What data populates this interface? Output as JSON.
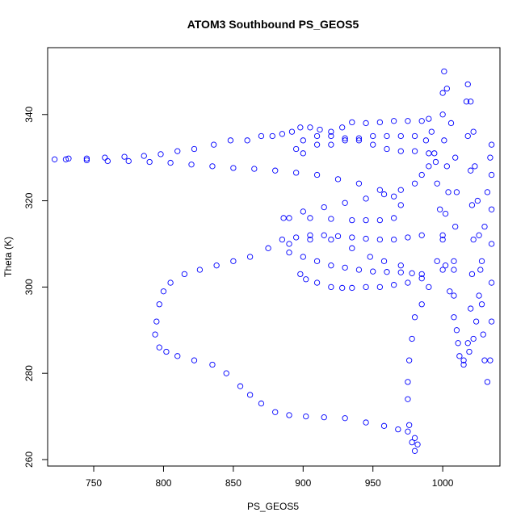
{
  "chart_data": {
    "type": "scatter",
    "title": "ATOM3 Southbound PS_GEOS5",
    "xlabel": "PS_GEOS5",
    "ylabel": "Theta (K)",
    "xlim": [
      717,
      1041
    ],
    "ylim": [
      258.5,
      355.5
    ],
    "xticks": [
      750,
      800,
      850,
      900,
      950,
      1000
    ],
    "yticks": [
      260,
      280,
      300,
      320,
      340
    ],
    "grid": false,
    "legend": "none",
    "marker": "open-circle",
    "color": "#0000ff",
    "series": [
      {
        "points": [
          [
            1008,
            304
          ],
          [
            1000,
            304
          ],
          [
            985,
            303
          ],
          [
            970,
            305
          ],
          [
            958,
            306
          ],
          [
            948,
            307
          ],
          [
            935,
            309
          ],
          [
            920,
            311
          ],
          [
            905,
            311
          ],
          [
            890,
            310
          ],
          [
            875,
            309
          ],
          [
            862,
            307
          ],
          [
            850,
            306
          ],
          [
            838,
            305
          ],
          [
            826,
            304
          ],
          [
            815,
            303
          ],
          [
            805,
            301
          ],
          [
            800,
            299
          ],
          [
            797,
            296
          ],
          [
            795,
            292
          ],
          [
            794,
            289
          ],
          [
            797,
            286
          ],
          [
            802,
            285
          ],
          [
            810,
            284
          ],
          [
            822,
            283
          ],
          [
            835,
            282
          ],
          [
            845,
            280
          ],
          [
            855,
            277
          ],
          [
            862,
            275
          ],
          [
            870,
            273
          ],
          [
            880,
            271
          ],
          [
            890,
            270.3
          ],
          [
            902,
            270
          ],
          [
            915,
            269.8
          ],
          [
            930,
            269.6
          ],
          [
            945,
            268.6
          ],
          [
            958,
            267.8
          ],
          [
            968,
            267
          ],
          [
            975,
            266.5
          ],
          [
            980,
            265
          ],
          [
            982,
            263.5
          ],
          [
            980,
            262
          ],
          [
            978,
            264
          ],
          [
            976,
            268
          ],
          [
            975,
            274
          ],
          [
            975,
            278
          ],
          [
            976,
            283
          ],
          [
            978,
            288
          ],
          [
            980,
            293
          ],
          [
            985,
            296
          ],
          [
            990,
            300
          ],
          [
            996,
            306
          ],
          [
            1000,
            312
          ],
          [
            1002,
            317
          ],
          [
            1004,
            322
          ],
          [
            1003,
            328
          ],
          [
            1001,
            334
          ],
          [
            1000,
            340
          ],
          [
            1000,
            345
          ],
          [
            1001,
            350
          ],
          [
            1003,
            346
          ],
          [
            1006,
            338
          ],
          [
            1009,
            330
          ],
          [
            1010,
            322
          ],
          [
            1009,
            314
          ],
          [
            1008,
            306
          ],
          [
            1008,
            298
          ],
          [
            1010,
            290
          ],
          [
            1012,
            284
          ],
          [
            1015,
            282
          ],
          [
            1018,
            287
          ],
          [
            1020,
            295
          ],
          [
            1021,
            303
          ],
          [
            1022,
            311
          ],
          [
            1021,
            319
          ],
          [
            1020,
            327
          ],
          [
            1018,
            335
          ],
          [
            1017,
            343
          ],
          [
            1018,
            347
          ],
          [
            1020,
            343
          ],
          [
            1022,
            336
          ],
          [
            1023,
            328
          ],
          [
            1025,
            320
          ],
          [
            1026,
            312
          ],
          [
            1027,
            304
          ],
          [
            1028,
            296
          ],
          [
            1029,
            289
          ],
          [
            1030,
            283
          ],
          [
            1032,
            278
          ],
          [
            1034,
            283
          ],
          [
            1035,
            292
          ],
          [
            1035,
            301
          ],
          [
            1035,
            310
          ],
          [
            1035,
            318
          ],
          [
            1035,
            326
          ],
          [
            1035,
            333
          ],
          [
            1034,
            330
          ],
          [
            1032,
            322
          ],
          [
            1030,
            314
          ],
          [
            1028,
            306
          ],
          [
            1026,
            298
          ],
          [
            1024,
            292
          ],
          [
            1022,
            288
          ],
          [
            1019,
            285
          ],
          [
            1015,
            283
          ],
          [
            1011,
            287
          ],
          [
            1008,
            293
          ],
          [
            1005,
            299
          ],
          [
            1002,
            305
          ],
          [
            1000,
            311
          ],
          [
            998,
            318
          ],
          [
            996,
            324
          ],
          [
            994,
            331
          ],
          [
            992,
            336
          ],
          [
            990,
            339
          ],
          [
            985,
            338.5
          ],
          [
            975,
            338.5
          ],
          [
            965,
            338.5
          ],
          [
            955,
            338.2
          ],
          [
            945,
            338
          ],
          [
            935,
            338.2
          ],
          [
            928,
            337
          ],
          [
            920,
            336
          ],
          [
            912,
            336.5
          ],
          [
            905,
            337
          ],
          [
            898,
            337
          ],
          [
            892,
            336
          ],
          [
            885,
            335.5
          ],
          [
            878,
            335
          ],
          [
            870,
            335
          ],
          [
            860,
            334
          ],
          [
            848,
            334
          ],
          [
            836,
            333
          ],
          [
            822,
            332
          ],
          [
            810,
            331.5
          ],
          [
            798,
            330.8
          ],
          [
            786,
            330.4
          ],
          [
            772,
            330.2
          ],
          [
            758,
            330
          ],
          [
            745,
            329.8
          ],
          [
            732,
            329.8
          ],
          [
            722,
            329.6
          ],
          [
            730,
            329.6
          ],
          [
            745,
            329.4
          ],
          [
            760,
            329.2
          ],
          [
            775,
            329.2
          ],
          [
            790,
            329
          ],
          [
            805,
            328.8
          ],
          [
            820,
            328.4
          ],
          [
            835,
            328
          ],
          [
            850,
            327.6
          ],
          [
            865,
            327.4
          ],
          [
            880,
            327
          ],
          [
            895,
            326.5
          ],
          [
            910,
            326
          ],
          [
            925,
            325
          ],
          [
            940,
            324
          ],
          [
            955,
            322.5
          ],
          [
            965,
            321
          ],
          [
            970,
            319
          ],
          [
            965,
            316
          ],
          [
            955,
            315.5
          ],
          [
            945,
            315.5
          ],
          [
            935,
            315.5
          ],
          [
            920,
            315.8
          ],
          [
            905,
            316
          ],
          [
            890,
            316
          ],
          [
            886,
            316
          ],
          [
            900,
            317.5
          ],
          [
            915,
            318.5
          ],
          [
            930,
            319.5
          ],
          [
            945,
            320.5
          ],
          [
            958,
            321.5
          ],
          [
            970,
            322.5
          ],
          [
            980,
            324
          ],
          [
            985,
            326
          ],
          [
            990,
            328
          ],
          [
            995,
            329
          ],
          [
            990,
            331
          ],
          [
            980,
            331.5
          ],
          [
            970,
            331.5
          ],
          [
            960,
            332
          ],
          [
            950,
            333
          ],
          [
            940,
            334
          ],
          [
            930,
            334.5
          ],
          [
            920,
            335
          ],
          [
            910,
            335
          ],
          [
            900,
            334
          ],
          [
            895,
            332
          ],
          [
            900,
            331
          ],
          [
            910,
            333
          ],
          [
            920,
            333
          ],
          [
            930,
            334
          ],
          [
            940,
            334.5
          ],
          [
            950,
            335
          ],
          [
            960,
            335
          ],
          [
            970,
            335
          ],
          [
            980,
            335
          ],
          [
            988,
            334
          ],
          [
            985,
            312
          ],
          [
            975,
            311.5
          ],
          [
            965,
            311
          ],
          [
            955,
            311
          ],
          [
            945,
            311.2
          ],
          [
            935,
            311.5
          ],
          [
            925,
            311.8
          ],
          [
            915,
            312
          ],
          [
            905,
            312
          ],
          [
            895,
            311.5
          ],
          [
            885,
            311
          ],
          [
            890,
            308
          ],
          [
            900,
            307
          ],
          [
            910,
            306
          ],
          [
            920,
            305
          ],
          [
            930,
            304.5
          ],
          [
            940,
            304
          ],
          [
            950,
            303.6
          ],
          [
            960,
            303.5
          ],
          [
            970,
            303.4
          ],
          [
            978,
            303.2
          ],
          [
            985,
            302
          ],
          [
            975,
            301
          ],
          [
            965,
            300.5
          ],
          [
            955,
            300
          ],
          [
            945,
            300
          ],
          [
            935,
            299.8
          ],
          [
            928,
            299.8
          ],
          [
            920,
            300
          ],
          [
            910,
            301
          ],
          [
            902,
            301.8
          ],
          [
            898,
            303
          ]
        ]
      }
    ]
  }
}
